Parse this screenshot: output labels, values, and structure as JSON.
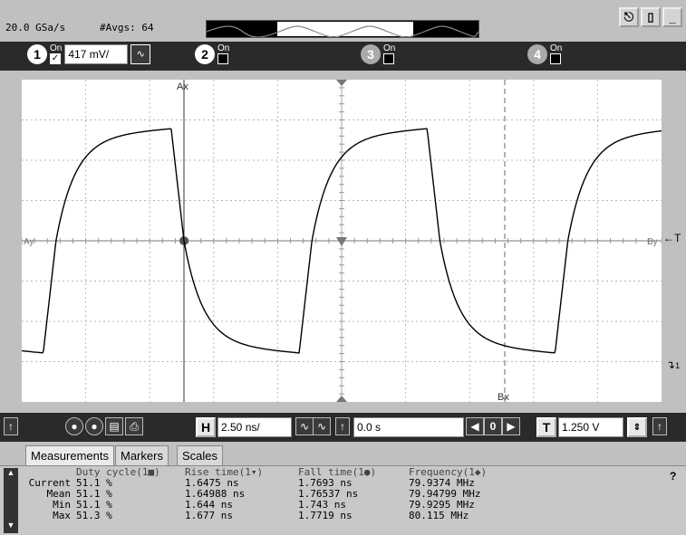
{
  "status": {
    "sample_rate": "20.0 GSa/s",
    "averages": "#Avgs: 64"
  },
  "top_icons": [
    "square-wave-icon",
    "mouse-icon",
    "minimize-icon"
  ],
  "channels": [
    {
      "number": "1",
      "on_label": "On",
      "checked": true,
      "scale": "417 mV/"
    },
    {
      "number": "2",
      "on_label": "On",
      "checked": false
    },
    {
      "number": "3",
      "on_label": "On",
      "checked": false
    },
    {
      "number": "4",
      "on_label": "On",
      "checked": false
    }
  ],
  "markers": {
    "ax": "Ax",
    "bx": "Bx",
    "ay": "Ay",
    "by": "By",
    "trigger_label": "T",
    "ground_label": "1"
  },
  "waveform": {
    "period_divisions": 4.0,
    "amplitude_divisions": 3.0,
    "trace_color": "#000000"
  },
  "controls": {
    "horizontal_label": "H",
    "timebase": "2.50 ns/",
    "delay": "0.0 s",
    "trigger_label": "T",
    "trigger_level": "1.250 V",
    "nav_value": "0"
  },
  "tabs": [
    "Measurements",
    "Markers",
    "Scales"
  ],
  "measurements": {
    "headers": [
      "Duty cycle(1■)",
      "Rise time(1▾)",
      "Fall time(1●)",
      "Frequency(1◆)"
    ],
    "rows": [
      {
        "label": "Current",
        "values": [
          "51.1 %",
          "1.6475 ns",
          "1.7693 ns",
          "79.9374 MHz"
        ]
      },
      {
        "label": "Mean",
        "values": [
          "51.1 %",
          "1.64988 ns",
          "1.76537 ns",
          "79.94799 MHz"
        ]
      },
      {
        "label": "Min",
        "values": [
          "51.1 %",
          "1.644 ns",
          "1.743 ns",
          "79.9295 MHz"
        ]
      },
      {
        "label": "Max",
        "values": [
          "51.3 %",
          "1.677 ns",
          "1.7719 ns",
          "80.115 MHz"
        ]
      }
    ],
    "help": "?"
  }
}
